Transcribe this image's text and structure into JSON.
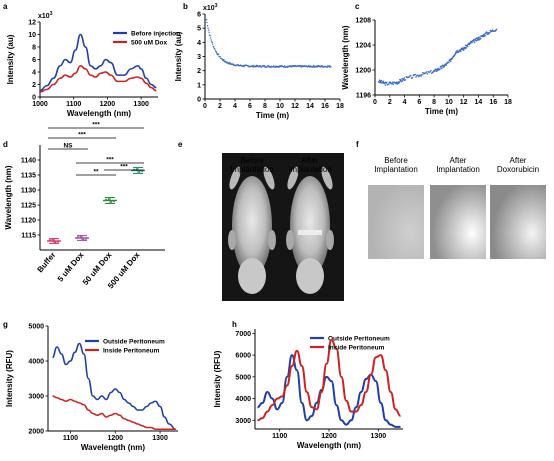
{
  "panels": {
    "a": {
      "label": "a"
    },
    "b": {
      "label": "b"
    },
    "c": {
      "label": "c"
    },
    "d": {
      "label": "d"
    },
    "e": {
      "label": "e",
      "captions": [
        [
          "Before",
          "Implantation"
        ],
        [
          "After",
          "Implantation"
        ]
      ]
    },
    "f": {
      "label": "f",
      "captions": [
        [
          "Before",
          "Implantation"
        ],
        [
          "After",
          "Implantation"
        ],
        [
          "After",
          "Doxorubicin"
        ]
      ]
    },
    "g": {
      "label": "g"
    },
    "h": {
      "label": "h"
    }
  },
  "colors": {
    "blue": "#1f3fa8",
    "red": "#cc2222",
    "scatter": "#3a6ac8",
    "buffer": "#d0306a",
    "dox5": "#9a4aa0",
    "dox50": "#2f8a3a",
    "dox500": "#2a9070"
  },
  "chart_data": [
    {
      "id": "a",
      "type": "line",
      "xlabel": "Wavelength (nm)",
      "ylabel": "Intensity (au)",
      "y_multiplier": "x10",
      "y_multiplier_exp": "3",
      "xlim": [
        1000,
        1350
      ],
      "ylim": [
        0,
        12
      ],
      "xticks": [
        1000,
        1100,
        1200,
        1300
      ],
      "yticks": [
        0,
        2,
        4,
        6,
        8,
        10,
        12
      ],
      "legend": "top-right",
      "series": [
        {
          "name": "Before injection",
          "color": "#1f3fa8",
          "x": [
            1000,
            1020,
            1040,
            1060,
            1075,
            1090,
            1105,
            1120,
            1135,
            1150,
            1165,
            1180,
            1195,
            1210,
            1230,
            1250,
            1270,
            1290,
            1300,
            1315,
            1330,
            1345
          ],
          "y": [
            1.0,
            1.8,
            3.0,
            5.0,
            6.0,
            5.5,
            7.5,
            10.0,
            8.0,
            5.0,
            4.5,
            5.0,
            6.0,
            5.5,
            3.5,
            3.5,
            4.5,
            5.0,
            4.5,
            3.0,
            2.0,
            1.5
          ]
        },
        {
          "name": "500 uM Dox",
          "color": "#cc2222",
          "x": [
            1000,
            1020,
            1040,
            1060,
            1075,
            1090,
            1105,
            1120,
            1135,
            1150,
            1165,
            1180,
            1195,
            1210,
            1230,
            1250,
            1270,
            1290,
            1300,
            1315,
            1330,
            1345
          ],
          "y": [
            0.8,
            1.2,
            2.0,
            3.0,
            3.5,
            3.2,
            3.8,
            5.0,
            4.5,
            3.5,
            3.2,
            3.8,
            4.0,
            3.5,
            2.5,
            2.5,
            3.0,
            3.2,
            3.0,
            2.2,
            1.5,
            1.0
          ]
        }
      ]
    },
    {
      "id": "b",
      "type": "scatter",
      "xlabel": "Time (m)",
      "ylabel": "Intensity (au)",
      "y_multiplier": "x10",
      "y_multiplier_exp": "3",
      "xlim": [
        0,
        18
      ],
      "ylim": [
        0,
        6
      ],
      "xticks": [
        0,
        2,
        4,
        6,
        8,
        10,
        12,
        14,
        16,
        18
      ],
      "yticks": [
        0,
        1,
        2,
        3,
        4,
        5,
        6
      ],
      "decay": {
        "start_x": 0.2,
        "start_y": 5.6,
        "plateau": 2.3,
        "rate": 0.9,
        "x_end": 16.8
      }
    },
    {
      "id": "c",
      "type": "scatter",
      "xlabel": "Time (m)",
      "ylabel": "Wavelength (nm)",
      "xlim": [
        0,
        18
      ],
      "ylim": [
        1196,
        1208
      ],
      "xticks": [
        0,
        2,
        4,
        6,
        8,
        10,
        12,
        14,
        16,
        18
      ],
      "yticks": [
        1196,
        1200,
        1204,
        1208
      ],
      "segments": [
        [
          0.5,
          1198.2
        ],
        [
          1.5,
          1197.8
        ],
        [
          3,
          1198.0
        ],
        [
          4,
          1198.6
        ],
        [
          6,
          1199.2
        ],
        [
          8,
          1199.8
        ],
        [
          9,
          1200.4
        ],
        [
          10,
          1201.2
        ],
        [
          11,
          1203.0
        ],
        [
          12,
          1203.4
        ],
        [
          13,
          1204.4
        ],
        [
          14,
          1205.0
        ],
        [
          15,
          1205.8
        ],
        [
          16.5,
          1206.6
        ]
      ]
    },
    {
      "id": "d",
      "type": "scatter",
      "ylabel": "Wavelength (nm)",
      "ylim": [
        1110,
        1145
      ],
      "yticks": [
        1115,
        1120,
        1125,
        1130,
        1135,
        1140
      ],
      "categories": [
        "Buffer",
        "5 uM Dox",
        "50 uM Dox",
        "500 uM Dox"
      ],
      "means": [
        1113.0,
        1114.0,
        1126.5,
        1136.5
      ],
      "errors": [
        0.8,
        0.8,
        1.0,
        1.0
      ],
      "significance": [
        {
          "pair": [
            0,
            3
          ],
          "label": "***"
        },
        {
          "pair": [
            0,
            2
          ],
          "label": "***"
        },
        {
          "pair": [
            0,
            1
          ],
          "label": "NS"
        },
        {
          "pair": [
            1,
            3
          ],
          "label": "***"
        },
        {
          "pair": [
            1,
            2
          ],
          "label": "**"
        },
        {
          "pair": [
            2,
            3
          ],
          "label": "***"
        }
      ]
    },
    {
      "id": "g",
      "type": "line",
      "xlabel": "Wavelength (nm)",
      "ylabel": "Intensity (RFU)",
      "xlim": [
        1050,
        1340
      ],
      "ylim": [
        2000,
        5000
      ],
      "xticks": [
        1100,
        1200,
        1300
      ],
      "yticks": [
        2000,
        3000,
        4000,
        5000
      ],
      "legend": "top-right",
      "series": [
        {
          "name": "Outside Peritoneum",
          "color": "#1f3fa8",
          "x": [
            1060,
            1070,
            1080,
            1090,
            1100,
            1110,
            1120,
            1130,
            1140,
            1150,
            1160,
            1170,
            1180,
            1190,
            1200,
            1210,
            1220,
            1230,
            1240,
            1250,
            1260,
            1270,
            1280,
            1290,
            1300,
            1310,
            1320,
            1335
          ],
          "y": [
            4100,
            4400,
            4200,
            3900,
            4000,
            4250,
            4500,
            4200,
            3500,
            3000,
            2900,
            3000,
            2900,
            3100,
            3200,
            3100,
            2900,
            2800,
            2700,
            2600,
            2600,
            2700,
            2800,
            2850,
            2700,
            2400,
            2200,
            2050
          ]
        },
        {
          "name": "Inside Peritoneum",
          "color": "#cc2222",
          "x": [
            1060,
            1070,
            1080,
            1090,
            1100,
            1110,
            1120,
            1130,
            1140,
            1150,
            1160,
            1170,
            1180,
            1190,
            1200,
            1210,
            1220,
            1230,
            1240,
            1250,
            1260,
            1270,
            1280,
            1290,
            1300,
            1310,
            1320,
            1335
          ],
          "y": [
            3000,
            2950,
            2900,
            2850,
            2900,
            2850,
            2800,
            2750,
            2600,
            2500,
            2450,
            2500,
            2400,
            2450,
            2500,
            2450,
            2350,
            2300,
            2250,
            2200,
            2150,
            2100,
            2100,
            2050,
            2050,
            2050,
            2050,
            2050
          ]
        }
      ]
    },
    {
      "id": "h",
      "type": "line",
      "xlabel": "Wavelength (nm)",
      "ylabel": "Intensity (RFU)",
      "xlim": [
        1050,
        1350
      ],
      "ylim": [
        2600,
        7200
      ],
      "xticks": [
        1100,
        1200,
        1300
      ],
      "yticks": [
        3000,
        4000,
        5000,
        6000,
        7000
      ],
      "legend": "top-right",
      "series": [
        {
          "name": "Outside Peritoneum",
          "color": "#1f3fa8",
          "x": [
            1055,
            1065,
            1075,
            1085,
            1095,
            1105,
            1115,
            1125,
            1135,
            1145,
            1155,
            1165,
            1175,
            1185,
            1195,
            1205,
            1215,
            1225,
            1235,
            1245,
            1255,
            1265,
            1275,
            1285,
            1295,
            1305,
            1315,
            1325,
            1335,
            1345
          ],
          "y": [
            3600,
            3800,
            4300,
            4000,
            3500,
            3800,
            5000,
            6000,
            5300,
            3800,
            3000,
            3200,
            3800,
            4400,
            5000,
            4800,
            3700,
            3000,
            2800,
            3000,
            3600,
            4300,
            4900,
            5100,
            4800,
            3800,
            3000,
            2800,
            2700,
            2700
          ]
        },
        {
          "name": "Inside Peritoneum",
          "color": "#cc2222",
          "x": [
            1055,
            1065,
            1075,
            1085,
            1095,
            1105,
            1115,
            1125,
            1135,
            1145,
            1155,
            1165,
            1175,
            1185,
            1195,
            1205,
            1215,
            1225,
            1235,
            1245,
            1255,
            1265,
            1275,
            1285,
            1295,
            1305,
            1315,
            1325,
            1335,
            1345
          ],
          "y": [
            3000,
            3100,
            3400,
            3700,
            4000,
            4100,
            4600,
            5500,
            6200,
            5500,
            4300,
            3600,
            3500,
            4300,
            5600,
            6700,
            6300,
            5000,
            3900,
            3400,
            3400,
            3700,
            4300,
            5100,
            5900,
            6000,
            5300,
            4300,
            3500,
            3200
          ]
        }
      ]
    }
  ]
}
